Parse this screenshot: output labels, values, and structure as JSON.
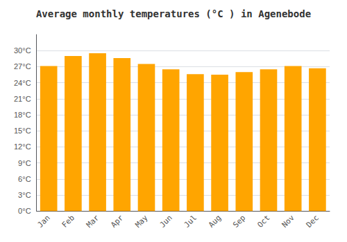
{
  "chart_data": {
    "type": "bar",
    "title": "Average monthly temperatures (°C ) in Agenebode",
    "categories": [
      "Jan",
      "Feb",
      "Mar",
      "Apr",
      "May",
      "Jun",
      "Jul",
      "Aug",
      "Sep",
      "Oct",
      "Nov",
      "Dec"
    ],
    "values": [
      27.1,
      29.0,
      29.5,
      28.6,
      27.5,
      26.5,
      25.6,
      25.5,
      26.0,
      26.5,
      27.1,
      26.7
    ],
    "color": "#FFA500",
    "ylim": [
      0,
      33
    ],
    "yticks": [
      {
        "value": 0,
        "label": "0°C"
      },
      {
        "value": 3,
        "label": "3°C"
      },
      {
        "value": 6,
        "label": "6°C"
      },
      {
        "value": 9,
        "label": "9°C"
      },
      {
        "value": 12,
        "label": "12°C"
      },
      {
        "value": 15,
        "label": "15°C"
      },
      {
        "value": 18,
        "label": "18°C"
      },
      {
        "value": 21,
        "label": "21°C"
      },
      {
        "value": 24,
        "label": "24°C"
      },
      {
        "value": 27,
        "label": "27°C"
      },
      {
        "value": 30,
        "label": "30°C"
      }
    ],
    "grid": true
  }
}
